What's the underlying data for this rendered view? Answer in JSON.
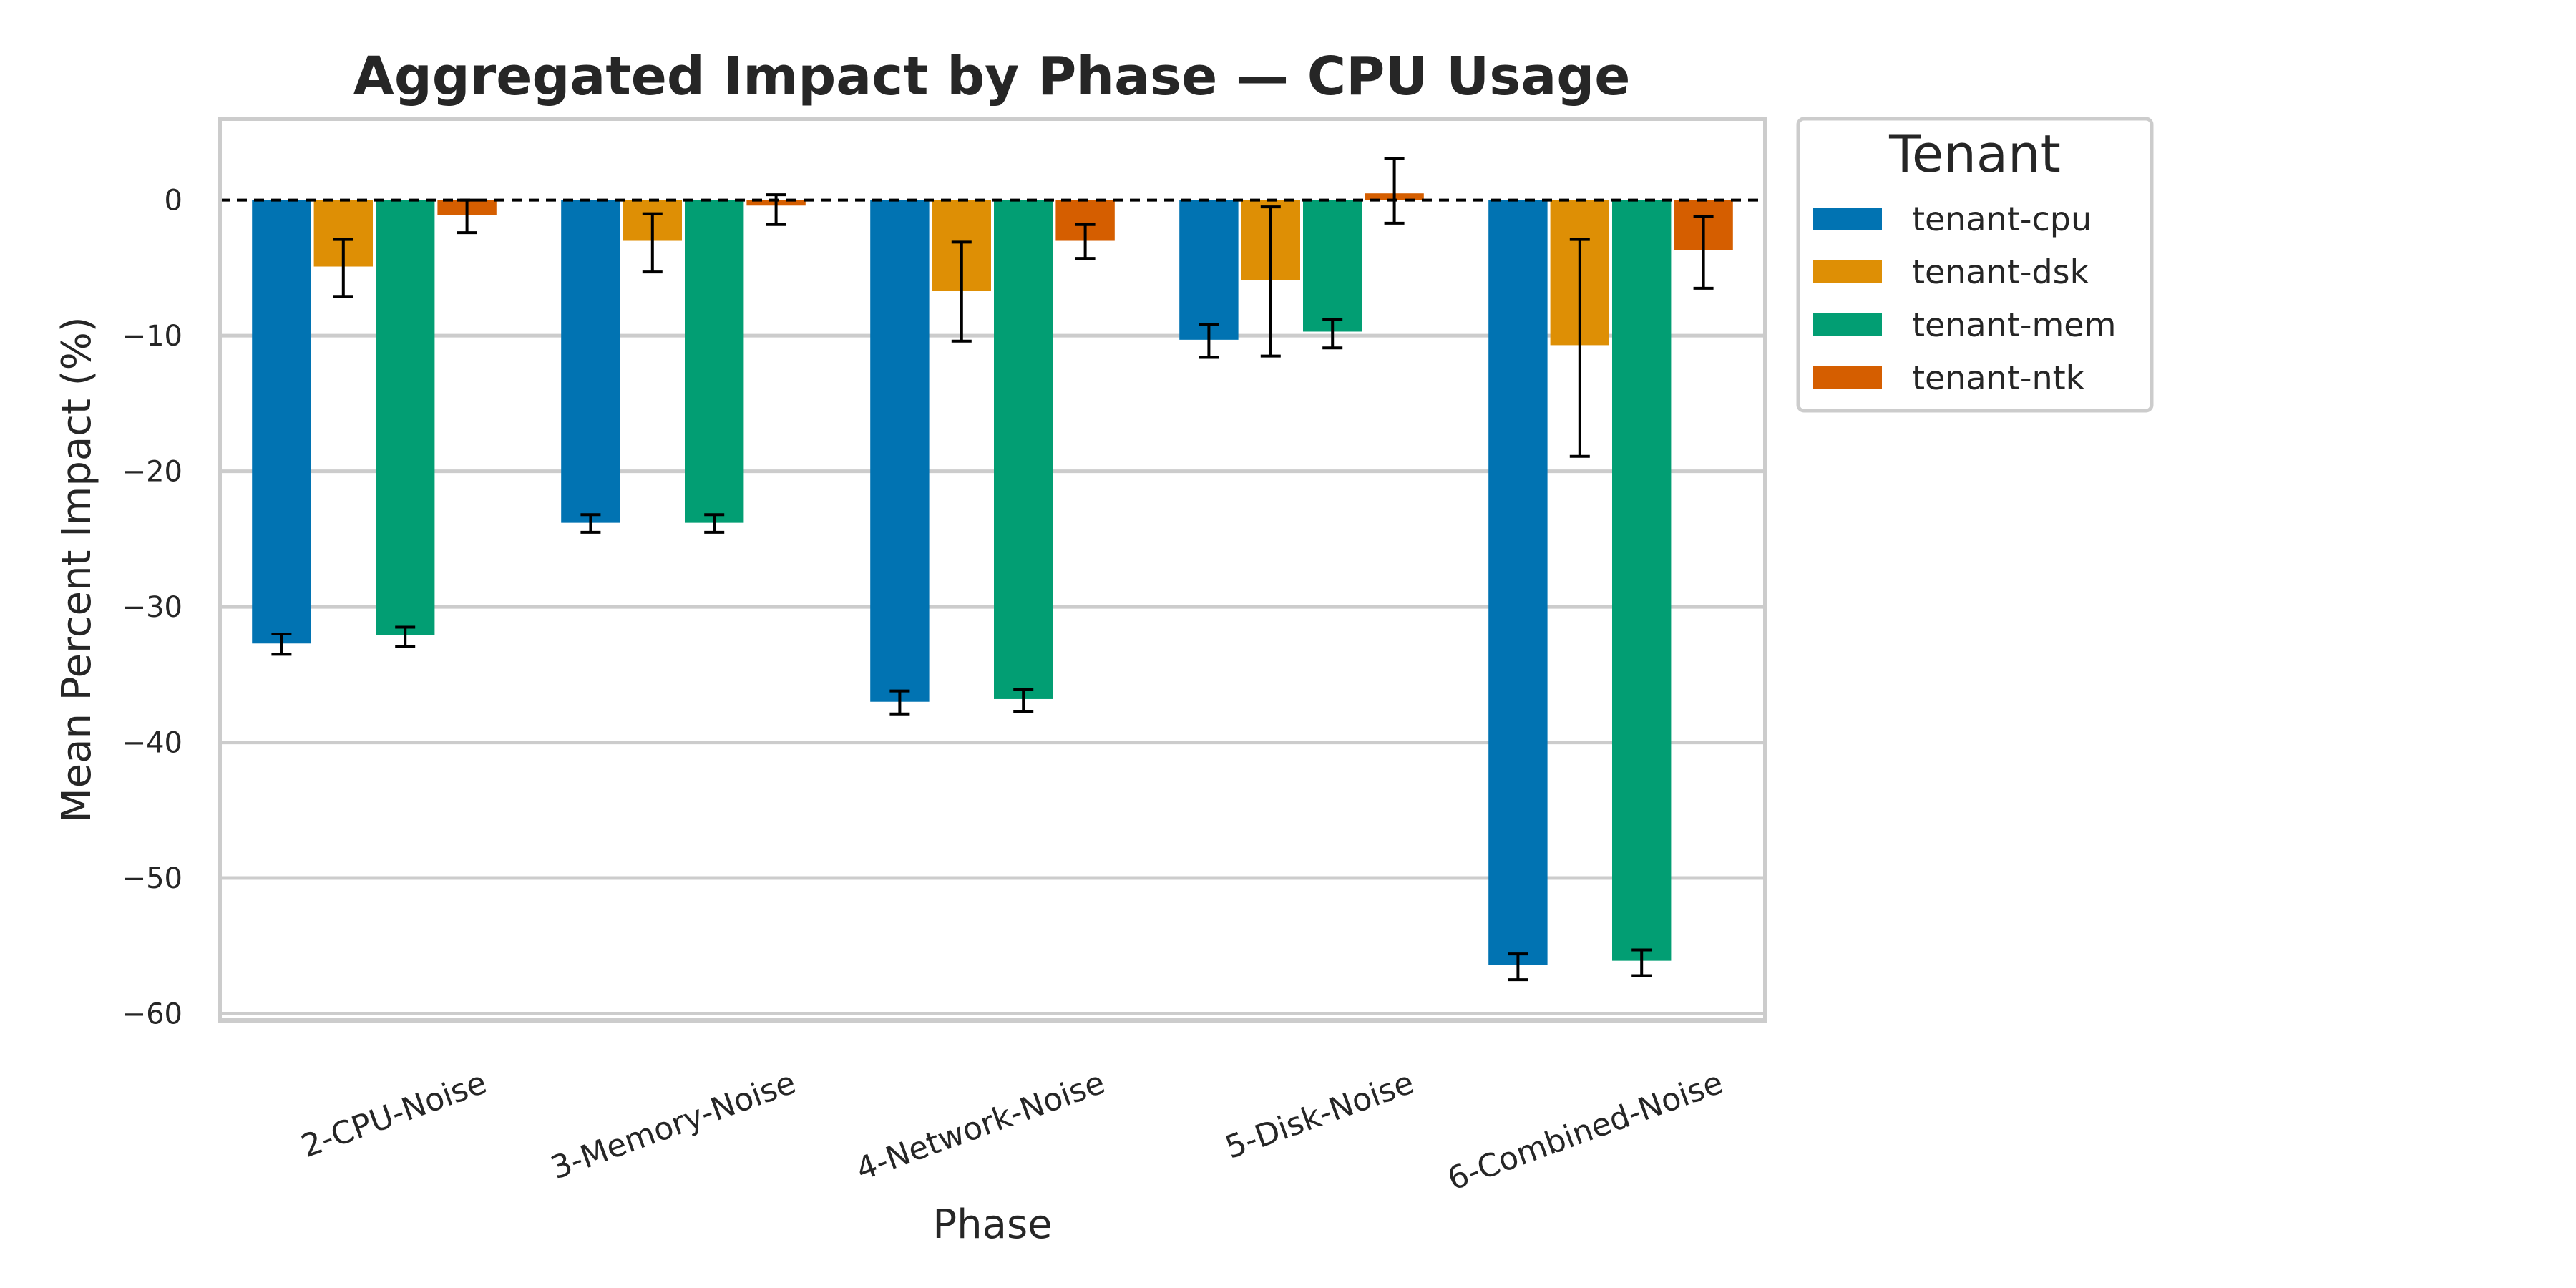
{
  "chart_data": {
    "type": "bar",
    "title": "Aggregated Impact by Phase — CPU Usage",
    "xlabel": "Phase",
    "ylabel": "Mean Percent Impact (%)",
    "ylim": [
      -60.5,
      6
    ],
    "yticks": [
      0,
      -10,
      -20,
      -30,
      -40,
      -50,
      -60
    ],
    "yticklabels": [
      "0",
      "−10",
      "−20",
      "−30",
      "−40",
      "−50",
      "−60"
    ],
    "grid": true,
    "zero_line": "dashed",
    "categories": [
      "2-CPU-Noise",
      "3-Memory-Noise",
      "4-Network-Noise",
      "5-Disk-Noise",
      "6-Combined-Noise"
    ],
    "legend": {
      "title": "Tenant",
      "placement": "outside-top-right"
    },
    "series": [
      {
        "name": "tenant-cpu",
        "color": "#0173b2",
        "values": [
          -32.7,
          -23.8,
          -37.0,
          -10.3,
          -56.4
        ],
        "err_low": [
          -33.5,
          -24.5,
          -37.9,
          -11.6,
          -57.5
        ],
        "err_high": [
          -32.0,
          -23.2,
          -36.2,
          -9.2,
          -55.6
        ]
      },
      {
        "name": "tenant-dsk",
        "color": "#de8f05",
        "values": [
          -4.9,
          -3.0,
          -6.7,
          -5.9,
          -10.7
        ],
        "err_low": [
          -7.1,
          -5.3,
          -10.4,
          -11.5,
          -18.9
        ],
        "err_high": [
          -2.9,
          -1.0,
          -3.1,
          -0.5,
          -2.9
        ]
      },
      {
        "name": "tenant-mem",
        "color": "#029e73",
        "values": [
          -32.1,
          -23.8,
          -36.8,
          -9.7,
          -56.1
        ],
        "err_low": [
          -32.9,
          -24.5,
          -37.7,
          -10.9,
          -57.2
        ],
        "err_high": [
          -31.5,
          -23.2,
          -36.1,
          -8.8,
          -55.3
        ]
      },
      {
        "name": "tenant-ntk",
        "color": "#d55e00",
        "values": [
          -1.1,
          -0.4,
          -3.0,
          0.5,
          -3.7
        ],
        "err_low": [
          -2.4,
          -1.8,
          -4.3,
          -1.7,
          -6.5
        ],
        "err_high": [
          0.0,
          0.4,
          -1.8,
          3.1,
          -1.2
        ]
      }
    ]
  }
}
